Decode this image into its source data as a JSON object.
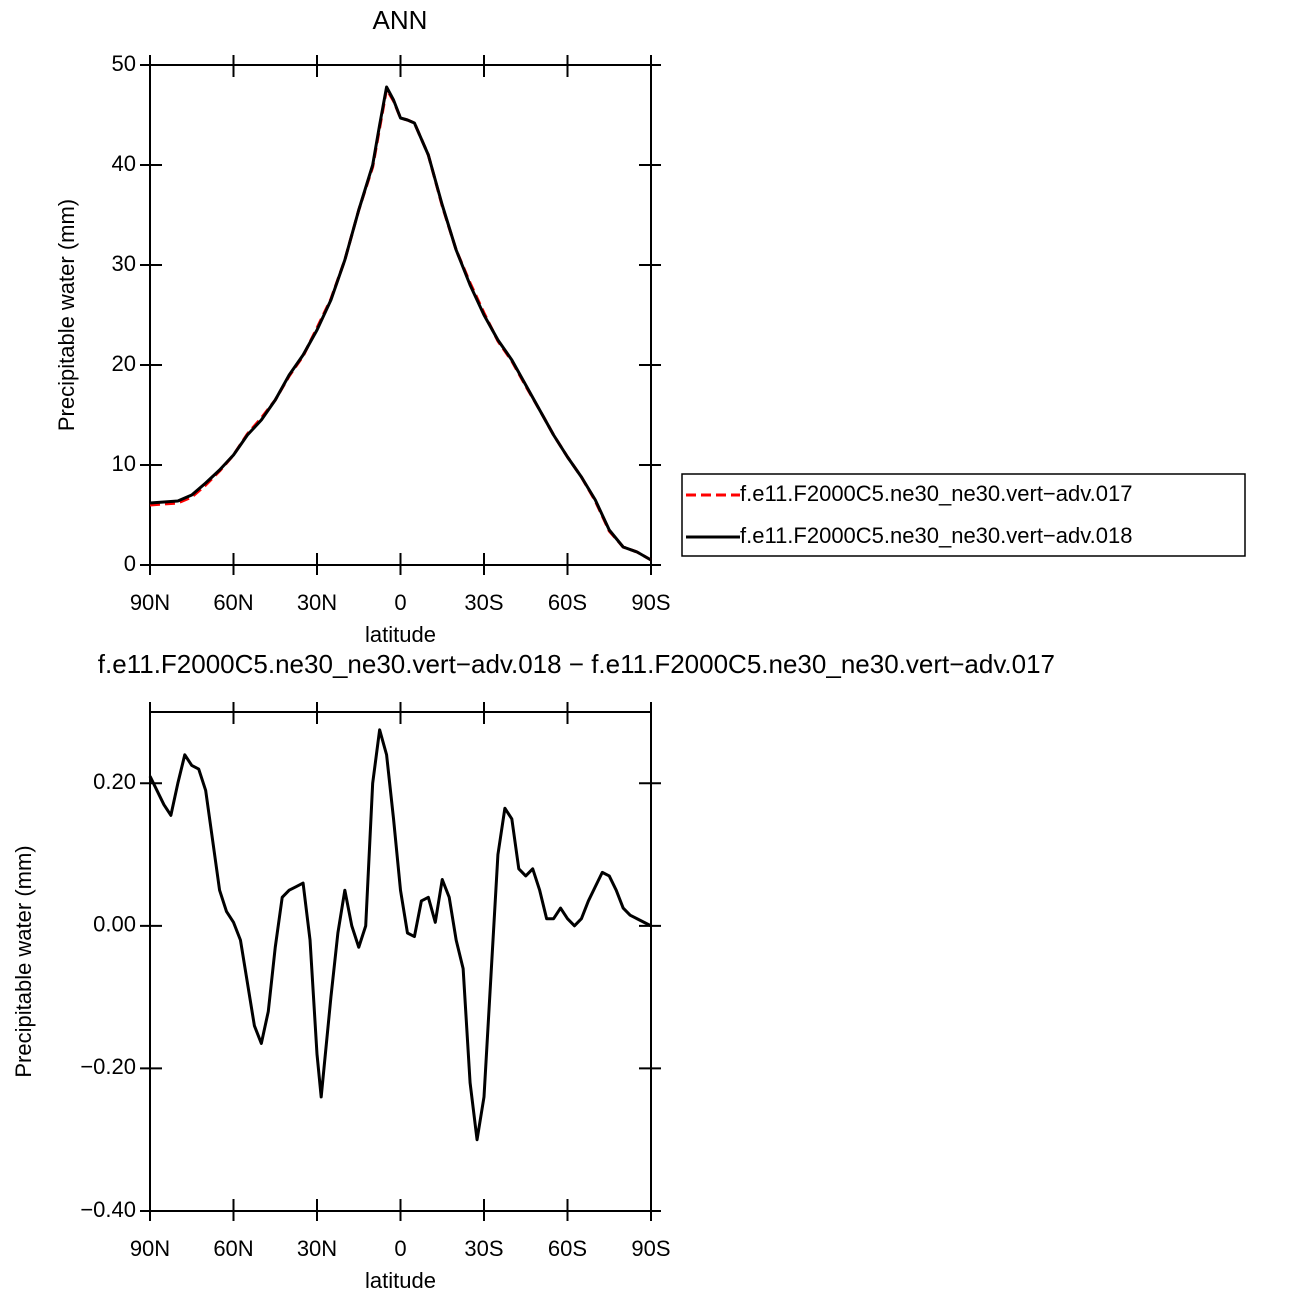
{
  "chart_data": [
    {
      "type": "line",
      "title": "ANN",
      "x_label": "latitude",
      "y_label": "Precipitable water (mm)",
      "x": [
        90,
        85,
        80,
        75,
        70,
        65,
        60,
        55,
        50,
        45,
        40,
        35,
        30,
        25,
        20,
        15,
        10,
        7.5,
        5,
        2.5,
        0,
        -2.5,
        -5,
        -10,
        -15,
        -20,
        -25,
        -30,
        -35,
        -40,
        -45,
        -50,
        -55,
        -60,
        -65,
        -70,
        -75,
        -80,
        -85,
        -90
      ],
      "series": [
        {
          "name": "f.e11.F2000C5.ne30_ne30.vert−adv.017",
          "color": "#ff0000",
          "linestyle": "dashed",
          "values": [
            6.0,
            6.1,
            6.2,
            6.8,
            8.0,
            9.4,
            11.0,
            13.1,
            14.7,
            16.5,
            18.9,
            20.9,
            23.7,
            26.6,
            30.5,
            35.5,
            39.8,
            43.7,
            47.6,
            46.4,
            44.7,
            44.5,
            44.2,
            41.0,
            35.9,
            31.5,
            28.2,
            25.2,
            22.4,
            20.4,
            17.9,
            15.5,
            13.0,
            10.8,
            8.8,
            6.4,
            3.4,
            1.8,
            1.3,
            0.5
          ]
        },
        {
          "name": "f.e11.F2000C5.ne30_ne30.vert−adv.018",
          "color": "#000000",
          "linestyle": "solid",
          "values": [
            6.2,
            6.3,
            6.4,
            7.0,
            8.2,
            9.5,
            11.0,
            13.0,
            14.5,
            16.5,
            19.0,
            21.0,
            23.5,
            26.5,
            30.5,
            35.5,
            40.0,
            44.0,
            47.8,
            46.5,
            44.7,
            44.5,
            44.2,
            41.0,
            36.0,
            31.5,
            28.0,
            25.0,
            22.5,
            20.5,
            18.0,
            15.5,
            13.0,
            10.8,
            8.8,
            6.5,
            3.5,
            1.8,
            1.3,
            0.5
          ]
        }
      ],
      "xlim": [
        90,
        -90
      ],
      "xticks": [
        {
          "value": 90,
          "label": "90N"
        },
        {
          "value": 60,
          "label": "60N"
        },
        {
          "value": 30,
          "label": "30N"
        },
        0,
        {
          "value": -30,
          "label": "30S"
        },
        {
          "value": -60,
          "label": "60S"
        },
        {
          "value": -90,
          "label": "90S"
        }
      ],
      "ylim": [
        0,
        50
      ],
      "yticks": [
        0,
        10,
        20,
        30,
        40,
        50
      ],
      "legend": "right"
    },
    {
      "type": "line",
      "title": "f.e11.F2000C5.ne30_ne30.vert−adv.018 − f.e11.F2000C5.ne30_ne30.vert−adv.017",
      "x_label": "latitude",
      "y_label": "Precipitable water (mm)",
      "x": [
        90,
        87.5,
        85,
        82.5,
        80,
        77.5,
        75,
        72.5,
        70,
        67.5,
        65,
        62.5,
        60,
        57.5,
        55,
        52.5,
        50,
        47.5,
        45,
        42.5,
        40,
        37.5,
        35,
        32.5,
        30,
        28.5,
        25,
        22.5,
        20,
        17.5,
        15,
        12.5,
        10,
        7.5,
        5,
        2.5,
        0,
        -2.5,
        -5,
        -7.5,
        -10,
        -12.5,
        -15,
        -17.5,
        -20,
        -22.5,
        -25,
        -27.5,
        -30,
        -32.5,
        -35,
        -37.5,
        -40,
        -42.5,
        -45,
        -47.5,
        -50,
        -52.5,
        -55,
        -57.5,
        -60,
        -62.5,
        -65,
        -67.5,
        -70,
        -72.5,
        -75,
        -77.5,
        -80,
        -82.5,
        -85,
        -90
      ],
      "values": [
        0.21,
        0.19,
        0.17,
        0.155,
        0.2,
        0.24,
        0.225,
        0.22,
        0.19,
        0.12,
        0.05,
        0.02,
        0.005,
        -0.02,
        -0.08,
        -0.14,
        -0.165,
        -0.12,
        -0.03,
        0.04,
        0.05,
        0.055,
        0.06,
        -0.02,
        -0.18,
        -0.24,
        -0.1,
        -0.01,
        0.05,
        0.0,
        -0.03,
        0.0,
        0.2,
        0.275,
        0.24,
        0.15,
        0.05,
        -0.01,
        -0.015,
        0.035,
        0.04,
        0.005,
        0.065,
        0.04,
        -0.02,
        -0.06,
        -0.22,
        -0.3,
        -0.24,
        -0.07,
        0.1,
        0.165,
        0.15,
        0.08,
        0.07,
        0.08,
        0.05,
        0.01,
        0.01,
        0.025,
        0.01,
        0.0,
        0.01,
        0.035,
        0.055,
        0.075,
        0.07,
        0.05,
        0.025,
        0.015,
        0.01,
        0.0
      ],
      "color": "#000000",
      "xlim": [
        90,
        -90
      ],
      "xticks": [
        {
          "value": 90,
          "label": "90N"
        },
        {
          "value": 60,
          "label": "60N"
        },
        {
          "value": 30,
          "label": "30N"
        },
        0,
        {
          "value": -30,
          "label": "30S"
        },
        {
          "value": -60,
          "label": "60S"
        },
        {
          "value": -90,
          "label": "90S"
        }
      ],
      "ylim": [
        -0.4,
        0.3
      ],
      "yticks": [
        {
          "value": -0.4,
          "label": "−0.40"
        },
        {
          "value": -0.2,
          "label": "−0.20"
        },
        {
          "value": 0,
          "label": "0.00"
        },
        {
          "value": 0.2,
          "label": "0.20"
        }
      ]
    }
  ]
}
